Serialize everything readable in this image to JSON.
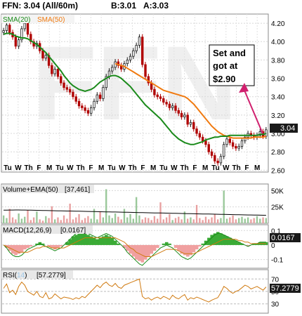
{
  "header": {
    "symbol_line": "FFN: 3.04 (All/60m)",
    "bid": "B:3.01",
    "ask": "A:3.03",
    "sma20_label": "SMA(20)",
    "sma50_label": "SMA(50)",
    "watermark": "FFN"
  },
  "colors": {
    "sma20": "#1a8a1a",
    "sma50": "#f07a10",
    "up_bar": "#1a1a1a",
    "down_bar": "#b00000",
    "annotation_arrow": "#d0206e",
    "macd_hist": "#3aaa35",
    "macd_hist_neg": "#f0a0a0",
    "rsi_line": "#d07a10",
    "price_tag_bg": "#1a1a1a",
    "price_tag_fg": "#ffffff",
    "panel_label_bg": "#e8e8e8"
  },
  "annotation": {
    "lines": [
      "Set and",
      "got at",
      "$2.90"
    ]
  },
  "price_tag": "3.04",
  "chart_data": [
    {
      "type": "candlestick",
      "title": "FFN: 3.04 (All/60m)",
      "x_ticks": [
        "Tu",
        "W",
        "Th",
        "F",
        "M",
        "Tu",
        "W",
        "Th",
        "F",
        "M",
        "Tu",
        "W",
        "Th",
        "F",
        "M",
        "Tu",
        "W",
        "Th",
        "F",
        "M",
        "Tu",
        "W",
        "Th",
        "F",
        "M"
      ],
      "y_ticks": [
        "4.20",
        "4.00",
        "3.80",
        "3.60",
        "3.40",
        "3.20",
        "3.00",
        "2.80",
        "2.60"
      ],
      "y_tick_values": [
        4.2,
        4.0,
        3.8,
        3.6,
        3.4,
        3.2,
        3.0,
        2.8,
        2.6
      ],
      "ylim": [
        2.58,
        4.3
      ],
      "grid": true,
      "close": [
        4.12,
        4.18,
        4.1,
        4.05,
        3.95,
        4.02,
        4.14,
        4.2,
        4.08,
        4.0,
        3.95,
        3.98,
        3.9,
        3.82,
        3.85,
        3.74,
        3.65,
        3.7,
        3.62,
        3.55,
        3.5,
        3.48,
        3.45,
        3.4,
        3.35,
        3.3,
        3.28,
        3.25,
        3.22,
        3.28,
        3.35,
        3.42,
        3.38,
        3.5,
        3.62,
        3.68,
        3.72,
        3.78,
        3.74,
        3.7,
        3.76,
        3.8,
        3.84,
        3.9,
        3.96,
        4.05,
        3.75,
        3.62,
        3.55,
        3.48,
        3.42,
        3.4,
        3.38,
        3.34,
        3.32,
        3.28,
        3.3,
        3.25,
        3.22,
        3.18,
        3.2,
        3.1,
        3.12,
        3.05,
        3.0,
        2.96,
        2.92,
        2.88,
        2.8,
        2.76,
        2.7,
        2.68,
        2.75,
        2.88,
        2.94,
        2.9,
        2.86,
        2.84,
        2.86,
        2.92,
        2.96,
        3.0,
        2.98,
        2.96,
        2.98,
        3.02,
        2.97,
        3.04
      ],
      "series": [
        {
          "name": "SMA(20)",
          "values": [
            4.08,
            4.09,
            4.09,
            4.08,
            4.06,
            4.05,
            4.04,
            4.04,
            4.03,
            4.01,
            3.99,
            3.97,
            3.94,
            3.91,
            3.88,
            3.84,
            3.8,
            3.76,
            3.72,
            3.68,
            3.63,
            3.59,
            3.55,
            3.52,
            3.5,
            3.48,
            3.47,
            3.46,
            3.47,
            3.48,
            3.5,
            3.53,
            3.56,
            3.58,
            3.6,
            3.62,
            3.63,
            3.63,
            3.62,
            3.6,
            3.57,
            3.54,
            3.51,
            3.47,
            3.43,
            3.39,
            3.35,
            3.31,
            3.28,
            3.25,
            3.22,
            3.19,
            3.16,
            3.12,
            3.08,
            3.04,
            3.0,
            2.97,
            2.94,
            2.92,
            2.9,
            2.89,
            2.88,
            2.88,
            2.89,
            2.9,
            2.91,
            2.93,
            2.94,
            2.95,
            2.96,
            2.96,
            2.97,
            2.97,
            2.97,
            2.98,
            2.98,
            2.98,
            2.98,
            2.98,
            2.98,
            2.98,
            2.98,
            2.98,
            2.98,
            2.99,
            2.99,
            3.0
          ]
        },
        {
          "name": "SMA(50)",
          "values": [
            null,
            null,
            null,
            null,
            null,
            null,
            null,
            null,
            null,
            null,
            null,
            null,
            null,
            null,
            null,
            null,
            null,
            null,
            null,
            null,
            null,
            null,
            null,
            null,
            null,
            null,
            null,
            null,
            null,
            null,
            null,
            null,
            null,
            null,
            null,
            null,
            null,
            3.76,
            3.75,
            3.74,
            3.73,
            3.71,
            3.69,
            3.67,
            3.65,
            3.63,
            3.61,
            3.59,
            3.57,
            3.55,
            3.53,
            3.51,
            3.49,
            3.47,
            3.46,
            3.45,
            3.44,
            3.43,
            3.42,
            3.41,
            3.4,
            3.38,
            3.35,
            3.32,
            3.28,
            3.24,
            3.2,
            3.16,
            3.12,
            3.08,
            3.05,
            3.02,
            3.0,
            2.98,
            2.97,
            2.96,
            2.95,
            2.95,
            2.95,
            2.95,
            2.95,
            2.95,
            2.95,
            2.96,
            2.96,
            2.96,
            2.96,
            2.97
          ]
        }
      ]
    },
    {
      "type": "bar",
      "title": "Volume+EMA(50)",
      "value_label": "[37,461]",
      "y_ticks": [
        "50K",
        "25K"
      ],
      "y_tick_values": [
        50000,
        25000
      ],
      "ylim": [
        0,
        60000
      ],
      "values": [
        12000,
        8000,
        22000,
        9000,
        6000,
        15000,
        7000,
        10000,
        20000,
        5000,
        9000,
        18000,
        6000,
        4000,
        11000,
        8000,
        26000,
        6000,
        9000,
        5000,
        12000,
        7000,
        30000,
        6000,
        9000,
        14000,
        5000,
        8000,
        11000,
        7000,
        22000,
        6000,
        18000,
        9000,
        52000,
        12000,
        8000,
        15000,
        10000,
        6000,
        22000,
        9000,
        14000,
        7000,
        40000,
        12000,
        6000,
        9000,
        8000,
        5000,
        11000,
        7000,
        32000,
        6000,
        9000,
        14000,
        5000,
        8000,
        10000,
        6000,
        18000,
        7000,
        9000,
        6000,
        28000,
        8000,
        5000,
        10000,
        6000,
        9000,
        14000,
        6000,
        8000,
        50000,
        7000,
        9000,
        12000,
        6000,
        8000,
        10000,
        7000,
        9000,
        6000,
        8000,
        11000,
        7000,
        9000,
        8000
      ],
      "series": [
        {
          "name": "EMA(50)",
          "values": [
            20000,
            20100,
            20200,
            20300,
            20400,
            20400,
            20300,
            20200,
            20100,
            20000,
            19900,
            19800,
            19700,
            19600,
            19500,
            19400,
            19300,
            19200,
            19100,
            19000,
            18900,
            18800,
            18700,
            18600,
            18500,
            18400,
            18300,
            18200,
            18100,
            18000,
            17900,
            17800,
            17700,
            17600,
            17500,
            17400,
            17300,
            17200,
            17100,
            17000,
            16900,
            16800,
            16700,
            16600,
            16500,
            16400,
            16300,
            16200,
            16100,
            16000,
            15900,
            15800,
            15700,
            15600,
            15500,
            15400,
            15300,
            15200,
            15100,
            15000,
            14900,
            14800,
            14700,
            14600,
            14500,
            14400,
            14300,
            14200,
            14100,
            14000,
            13900,
            13800,
            13700,
            13600,
            13500,
            13400,
            13300,
            13200,
            13100,
            13000,
            12900,
            12800,
            12700,
            12600,
            12500,
            12400,
            12300,
            12200
          ]
        }
      ]
    },
    {
      "type": "area",
      "title": "MACD(12,26,9)",
      "value_label": "[0.0167]",
      "current_value": "0.0167",
      "y_ticks": [
        "0.1",
        "0",
        "-0.1"
      ],
      "y_tick_values": [
        0.1,
        0,
        -0.1
      ],
      "ylim": [
        -0.16,
        0.14
      ],
      "histogram": [
        0.0,
        -0.02,
        -0.04,
        -0.06,
        -0.07,
        -0.06,
        -0.05,
        -0.03,
        -0.02,
        -0.01,
        0.0,
        0.01,
        0.02,
        0.01,
        0.0,
        -0.01,
        -0.02,
        -0.03,
        -0.02,
        -0.01,
        0.0,
        0.02,
        0.04,
        0.06,
        0.07,
        0.08,
        0.09,
        0.08,
        0.07,
        0.06,
        0.05,
        0.04,
        0.05,
        0.06,
        0.07,
        0.06,
        0.05,
        0.03,
        0.01,
        0.0,
        -0.02,
        -0.04,
        -0.06,
        -0.08,
        -0.1,
        -0.11,
        -0.12,
        -0.1,
        -0.08,
        -0.06,
        -0.04,
        -0.02,
        0.0,
        0.01,
        0.02,
        0.01,
        0.0,
        -0.02,
        -0.04,
        -0.06,
        -0.07,
        -0.08,
        -0.07,
        -0.05,
        -0.03,
        -0.01,
        0.01,
        0.03,
        0.05,
        0.07,
        0.08,
        0.09,
        0.08,
        0.07,
        0.06,
        0.05,
        0.04,
        0.03,
        0.02,
        0.01,
        0.0,
        -0.01,
        0.0,
        0.01,
        0.01,
        0.02,
        0.02,
        0.02
      ],
      "series": [
        {
          "name": "MACD",
          "values": [
            0.0,
            -0.02,
            -0.05,
            -0.07,
            -0.08,
            -0.08,
            -0.07,
            -0.05,
            -0.03,
            -0.02,
            -0.01,
            0.0,
            0.01,
            0.0,
            -0.01,
            -0.02,
            -0.03,
            -0.04,
            -0.03,
            -0.02,
            0.0,
            0.02,
            0.04,
            0.06,
            0.08,
            0.09,
            0.1,
            0.09,
            0.08,
            0.07,
            0.06,
            0.05,
            0.06,
            0.07,
            0.08,
            0.07,
            0.06,
            0.04,
            0.02,
            0.0,
            -0.02,
            -0.05,
            -0.07,
            -0.09,
            -0.11,
            -0.13,
            -0.14,
            -0.12,
            -0.1,
            -0.08,
            -0.06,
            -0.04,
            -0.02,
            -0.01,
            0.0,
            -0.01,
            -0.02,
            -0.04,
            -0.06,
            -0.08,
            -0.09,
            -0.1,
            -0.09,
            -0.07,
            -0.05,
            -0.03,
            -0.01,
            0.01,
            0.03,
            0.05,
            0.07,
            0.08,
            0.08,
            0.07,
            0.06,
            0.05,
            0.04,
            0.03,
            0.02,
            0.01,
            0.0,
            -0.01,
            0.0,
            0.01,
            0.01,
            0.02,
            0.02,
            0.02
          ]
        },
        {
          "name": "Signal",
          "values": [
            0.0,
            -0.01,
            -0.02,
            -0.03,
            -0.04,
            -0.05,
            -0.05,
            -0.05,
            -0.05,
            -0.04,
            -0.03,
            -0.02,
            -0.02,
            -0.01,
            -0.01,
            -0.01,
            -0.02,
            -0.02,
            -0.02,
            -0.02,
            -0.02,
            -0.01,
            0.0,
            0.01,
            0.02,
            0.03,
            0.04,
            0.05,
            0.05,
            0.05,
            0.05,
            0.05,
            0.05,
            0.05,
            0.05,
            0.05,
            0.05,
            0.05,
            0.04,
            0.03,
            0.02,
            0.0,
            -0.02,
            -0.03,
            -0.05,
            -0.06,
            -0.07,
            -0.08,
            -0.08,
            -0.08,
            -0.07,
            -0.06,
            -0.05,
            -0.04,
            -0.03,
            -0.03,
            -0.03,
            -0.03,
            -0.04,
            -0.05,
            -0.06,
            -0.06,
            -0.06,
            -0.06,
            -0.05,
            -0.04,
            -0.03,
            -0.02,
            -0.01,
            0.0,
            0.01,
            0.02,
            0.03,
            0.04,
            0.04,
            0.04,
            0.04,
            0.04,
            0.03,
            0.03,
            0.02,
            0.02,
            0.01,
            0.01,
            0.01,
            0.01,
            0.01,
            0.01
          ]
        }
      ]
    },
    {
      "type": "line",
      "title": "RSI(14)",
      "title_parts": [
        "RSI(",
        "14",
        ")"
      ],
      "value_label": "[57.2779]",
      "current_value": "57.2779",
      "y_ticks": [
        "70",
        "50",
        "30"
      ],
      "y_tick_values": [
        70,
        50,
        30
      ],
      "ylim": [
        15,
        85
      ],
      "series": [
        {
          "name": "RSI",
          "values": [
            55,
            62,
            48,
            52,
            45,
            58,
            65,
            60,
            50,
            47,
            44,
            50,
            42,
            40,
            48,
            38,
            40,
            46,
            42,
            38,
            41,
            40,
            39,
            37,
            40,
            38,
            42,
            40,
            45,
            50,
            55,
            60,
            56,
            62,
            65,
            60,
            58,
            63,
            57,
            55,
            60,
            62,
            64,
            66,
            68,
            70,
            42,
            38,
            40,
            36,
            39,
            41,
            38,
            42,
            40,
            37,
            44,
            40,
            38,
            42,
            45,
            36,
            40,
            38,
            41,
            39,
            37,
            35,
            33,
            36,
            38,
            40,
            48,
            58,
            55,
            50,
            47,
            50,
            52,
            56,
            60,
            58,
            54,
            56,
            58,
            55,
            52,
            57.28
          ]
        }
      ]
    }
  ]
}
